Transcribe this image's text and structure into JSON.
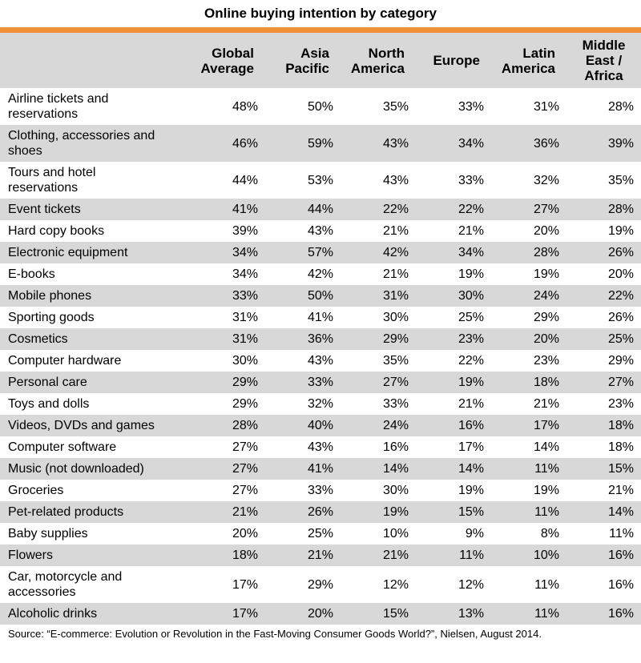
{
  "chart_data": {
    "type": "table",
    "title": "Online buying intention by category",
    "columns": [
      "Global Average",
      "Asia Pacific",
      "North America",
      "Europe",
      "Latin America",
      "Middle East / Africa"
    ],
    "column_lines": [
      [
        "Global",
        "Average"
      ],
      [
        "Asia",
        "Pacific"
      ],
      [
        "North",
        "America"
      ],
      [
        "Europe"
      ],
      [
        "Latin",
        "America"
      ],
      [
        "Middle",
        "East /",
        "Africa"
      ]
    ],
    "rows": [
      {
        "category_lines": [
          "Airline tickets and",
          "reservations"
        ],
        "values": [
          "48%",
          "50%",
          "35%",
          "33%",
          "31%",
          "28%"
        ]
      },
      {
        "category_lines": [
          "Clothing, accessories and",
          "shoes"
        ],
        "values": [
          "46%",
          "59%",
          "43%",
          "34%",
          "36%",
          "39%"
        ]
      },
      {
        "category_lines": [
          "Tours and hotel",
          "reservations"
        ],
        "values": [
          "44%",
          "53%",
          "43%",
          "33%",
          "32%",
          "35%"
        ]
      },
      {
        "category_lines": [
          "Event tickets"
        ],
        "values": [
          "41%",
          "44%",
          "22%",
          "22%",
          "27%",
          "28%"
        ]
      },
      {
        "category_lines": [
          "Hard copy books"
        ],
        "values": [
          "39%",
          "43%",
          "21%",
          "21%",
          "20%",
          "19%"
        ]
      },
      {
        "category_lines": [
          "Electronic equipment"
        ],
        "values": [
          "34%",
          "57%",
          "42%",
          "34%",
          "28%",
          "26%"
        ]
      },
      {
        "category_lines": [
          "E-books"
        ],
        "values": [
          "34%",
          "42%",
          "21%",
          "19%",
          "19%",
          "20%"
        ]
      },
      {
        "category_lines": [
          "Mobile phones"
        ],
        "values": [
          "33%",
          "50%",
          "31%",
          "30%",
          "24%",
          "22%"
        ]
      },
      {
        "category_lines": [
          "Sporting goods"
        ],
        "values": [
          "31%",
          "41%",
          "30%",
          "25%",
          "29%",
          "26%"
        ]
      },
      {
        "category_lines": [
          "Cosmetics"
        ],
        "values": [
          "31%",
          "36%",
          "29%",
          "23%",
          "20%",
          "25%"
        ]
      },
      {
        "category_lines": [
          "Computer hardware"
        ],
        "values": [
          "30%",
          "43%",
          "35%",
          "22%",
          "23%",
          "29%"
        ]
      },
      {
        "category_lines": [
          "Personal care"
        ],
        "values": [
          "29%",
          "33%",
          "27%",
          "19%",
          "18%",
          "27%"
        ]
      },
      {
        "category_lines": [
          "Toys and dolls"
        ],
        "values": [
          "29%",
          "32%",
          "33%",
          "21%",
          "21%",
          "23%"
        ]
      },
      {
        "category_lines": [
          "Videos, DVDs and games"
        ],
        "values": [
          "28%",
          "40%",
          "24%",
          "16%",
          "17%",
          "18%"
        ]
      },
      {
        "category_lines": [
          "Computer software"
        ],
        "values": [
          "27%",
          "43%",
          "16%",
          "17%",
          "14%",
          "18%"
        ]
      },
      {
        "category_lines": [
          "Music (not downloaded)"
        ],
        "values": [
          "27%",
          "41%",
          "14%",
          "14%",
          "11%",
          "15%"
        ]
      },
      {
        "category_lines": [
          "Groceries"
        ],
        "values": [
          "27%",
          "33%",
          "30%",
          "19%",
          "19%",
          "21%"
        ]
      },
      {
        "category_lines": [
          "Pet-related products"
        ],
        "values": [
          "21%",
          "26%",
          "19%",
          "15%",
          "11%",
          "14%"
        ]
      },
      {
        "category_lines": [
          "Baby supplies"
        ],
        "values": [
          "20%",
          "25%",
          "10%",
          "9%",
          "8%",
          "11%"
        ]
      },
      {
        "category_lines": [
          "Flowers"
        ],
        "values": [
          "18%",
          "21%",
          "21%",
          "11%",
          "10%",
          "16%"
        ]
      },
      {
        "category_lines": [
          "Car, motorcycle and",
          "accessories"
        ],
        "values": [
          "17%",
          "29%",
          "12%",
          "12%",
          "11%",
          "16%"
        ]
      },
      {
        "category_lines": [
          "Alcoholic drinks"
        ],
        "values": [
          "17%",
          "20%",
          "15%",
          "13%",
          "11%",
          "16%"
        ]
      }
    ],
    "colors": {
      "accent": "#f0913a",
      "row_shade": "#d8d8d8",
      "background": "#ffffff"
    }
  },
  "source_note": "Source: “E-commerce: Evolution or Revolution in the Fast-Moving Consumer Goods World?”, Nielsen, August 2014."
}
